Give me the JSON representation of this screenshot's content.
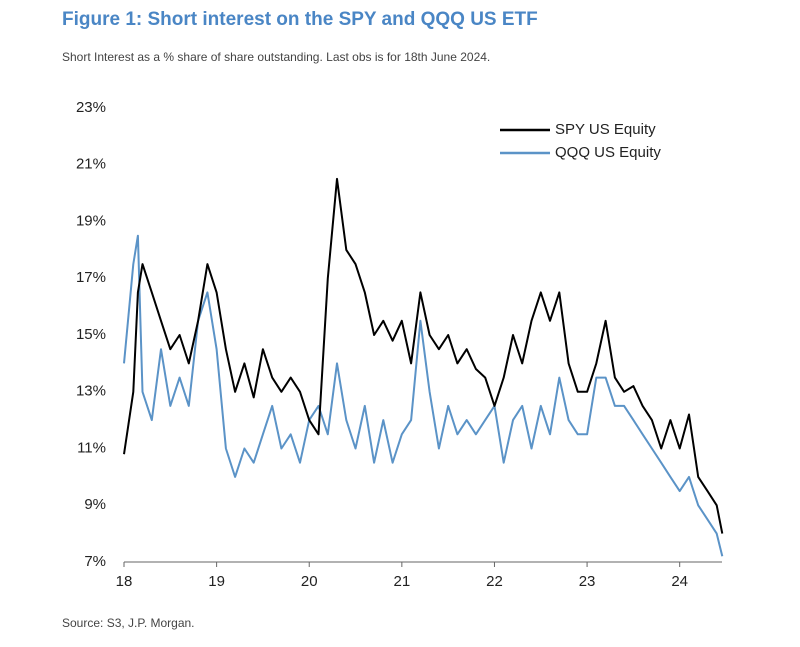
{
  "chart_data": {
    "type": "line",
    "title": "Figure 1: Short interest on the SPY and QQQ US ETF",
    "subtitle": "Short Interest as a % share of share outstanding. Last obs is for 18th June 2024.",
    "source": "Source: S3, J.P. Morgan.",
    "x": [
      18.0,
      18.1,
      18.15,
      18.2,
      18.3,
      18.4,
      18.5,
      18.6,
      18.7,
      18.8,
      18.9,
      19.0,
      19.1,
      19.2,
      19.3,
      19.4,
      19.5,
      19.6,
      19.7,
      19.8,
      19.9,
      20.0,
      20.1,
      20.2,
      20.3,
      20.4,
      20.5,
      20.6,
      20.7,
      20.8,
      20.9,
      21.0,
      21.1,
      21.2,
      21.3,
      21.4,
      21.5,
      21.6,
      21.7,
      21.8,
      21.9,
      22.0,
      22.1,
      22.2,
      22.3,
      22.4,
      22.5,
      22.6,
      22.7,
      22.8,
      22.9,
      23.0,
      23.1,
      23.2,
      23.3,
      23.4,
      23.5,
      23.6,
      23.7,
      23.8,
      23.9,
      24.0,
      24.1,
      24.2,
      24.3,
      24.4,
      24.46
    ],
    "series": [
      {
        "name": "SPY US Equity",
        "color": "#000000",
        "values": [
          10.8,
          13,
          16.5,
          17.5,
          16.5,
          15.5,
          14.5,
          15,
          14,
          15.5,
          17.5,
          16.5,
          14.5,
          13,
          14,
          12.8,
          14.5,
          13.5,
          13,
          13.5,
          13,
          12,
          11.5,
          17,
          20.5,
          18,
          17.5,
          16.5,
          15,
          15.5,
          14.8,
          15.5,
          14,
          16.5,
          15,
          14.5,
          15,
          14,
          14.5,
          13.8,
          13.5,
          12.5,
          13.5,
          15,
          14,
          15.5,
          16.5,
          15.5,
          16.5,
          14,
          13,
          13,
          14,
          15.5,
          13.5,
          13,
          13.2,
          12.5,
          12,
          11,
          12,
          11,
          12.2,
          10,
          9.5,
          9,
          8
        ]
      },
      {
        "name": "QQQ US Equity",
        "color": "#5b93c7",
        "values": [
          14,
          17.5,
          18.5,
          13,
          12,
          14.5,
          12.5,
          13.5,
          12.5,
          15.5,
          16.5,
          14.5,
          11,
          10,
          11,
          10.5,
          11.5,
          12.5,
          11,
          11.5,
          10.5,
          12,
          12.5,
          11.5,
          14,
          12,
          11,
          12.5,
          10.5,
          12,
          10.5,
          11.5,
          12,
          15.5,
          13,
          11,
          12.5,
          11.5,
          12,
          11.5,
          12,
          12.5,
          10.5,
          12,
          12.5,
          11,
          12.5,
          11.5,
          13.5,
          12,
          11.5,
          11.5,
          13.5,
          13.5,
          12.5,
          12.5,
          12,
          11.5,
          11,
          10.5,
          10,
          9.5,
          10,
          9,
          8.5,
          8,
          7.2
        ]
      }
    ],
    "xlim": [
      18,
      24.5
    ],
    "xticks": [
      18,
      19,
      20,
      21,
      22,
      23,
      24
    ],
    "ylim": [
      7,
      23
    ],
    "yticks": [
      {
        "value": 7,
        "label": "7%"
      },
      {
        "value": 9,
        "label": "9%"
      },
      {
        "value": 11,
        "label": "11%"
      },
      {
        "value": 13,
        "label": "13%"
      },
      {
        "value": 15,
        "label": "15%"
      },
      {
        "value": 17,
        "label": "17%"
      },
      {
        "value": 19,
        "label": "19%"
      },
      {
        "value": 21,
        "label": "21%"
      },
      {
        "value": 23,
        "label": "23%"
      }
    ],
    "grid": false,
    "legend": "upper right"
  }
}
